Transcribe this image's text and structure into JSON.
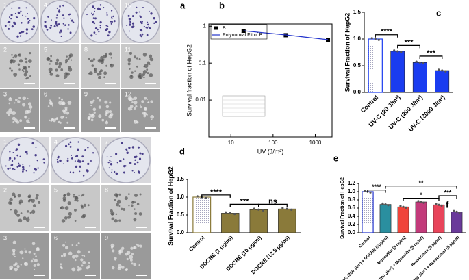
{
  "panels": [
    "a",
    "b",
    "c",
    "d",
    "e",
    "f"
  ],
  "photos": {
    "top": [
      [
        "1",
        "4",
        "7",
        "10"
      ],
      [
        "2",
        "5",
        "8",
        "11"
      ],
      [
        "3",
        "6",
        "9",
        "12"
      ]
    ],
    "bottom": [
      [
        "1",
        "4",
        "7"
      ],
      [
        "2",
        "5",
        "8"
      ],
      [
        "3",
        "6",
        "9"
      ]
    ]
  },
  "chart_data": [
    {
      "type": "scatter",
      "x_label": "UV (J/m²)",
      "y_label": "Survival fraction of HepG2",
      "xlog": true,
      "ylog": true,
      "xlim": [
        3,
        2500
      ],
      "ylim": [
        0.001,
        1.15
      ],
      "xticks": [
        10,
        100,
        1000
      ],
      "yticks": [
        0.01,
        0.1,
        1
      ],
      "series": [
        {
          "name": "B",
          "color": "#000000",
          "x": [
            20,
            200,
            2000
          ],
          "values": [
            0.75,
            0.57,
            0.42
          ]
        },
        {
          "name": "Polynomial Fit of B",
          "color": "#2233cc",
          "x": [
            20,
            200,
            2000
          ],
          "values": [
            0.75,
            0.58,
            0.43
          ]
        }
      ]
    },
    {
      "type": "bar",
      "y_label": "Survival Fraction of HepG2",
      "categories": [
        "Control",
        "UV-C (20 J/m²)",
        "UV-C (200 J/m²)",
        "UV-C (2000 J/m²)"
      ],
      "values": [
        1.0,
        0.77,
        0.56,
        0.41
      ],
      "colors": [
        "#ffffff",
        "#1a3cf0",
        "#1a3cf0",
        "#1a3cf0"
      ],
      "edgecolor": "#1a3cf0",
      "ylim": [
        0,
        1.5
      ],
      "yticks": [
        {
          "value": 0,
          "label": "0.0"
        },
        0.5,
        {
          "value": 1,
          "label": "1.0"
        },
        1.5
      ],
      "annotations": [
        "****",
        "***",
        "***"
      ]
    },
    {
      "type": "bar",
      "y_label": "Survival Fraction of HepG2",
      "categories": [
        "Control",
        "DOCRE (1 μg/ml)",
        "DOCRE (10 μg/ml)",
        "DOCRE (12.5 μg/ml)"
      ],
      "values": [
        1.0,
        0.55,
        0.65,
        0.67
      ],
      "colors": [
        "#ffffff",
        "#8a7a3a",
        "#8a7a3a",
        "#8a7a3a"
      ],
      "edgecolor": "#8a7a3a",
      "ylim": [
        0,
        1.5
      ],
      "yticks": [
        {
          "value": 0,
          "label": "0.0"
        },
        0.5,
        {
          "value": 1,
          "label": "1.0"
        },
        1.5
      ],
      "annotations": [
        "****",
        "***",
        "ns"
      ]
    },
    {
      "type": "bar",
      "y_label": "Survival Fraction of HepG2",
      "categories": [
        "Control",
        "UV-C (200 J/m²) + DOCRE (5μg/ml)",
        "Moscatilin (5 μg/ml)",
        "UV-C (200 J/m²) + Moscatilin (5 μg/ml)",
        "Resveratrol (5 μg/ml)",
        "UV-C (200 J/m²) + Resveratrol (5 μg/ml)"
      ],
      "values": [
        1.0,
        0.69,
        0.63,
        0.75,
        0.68,
        0.51
      ],
      "colors": [
        "#ffffff",
        "#2a8f9f",
        "#f0443a",
        "#c23a7a",
        "#e8445a",
        "#6a3a9a"
      ],
      "edgecolor": "#2233cc",
      "ylim": [
        0,
        1.2
      ],
      "yticks": [
        {
          "value": 0,
          "label": "0.0"
        },
        0.2,
        0.4,
        0.6,
        0.8,
        {
          "value": 1,
          "label": "1.0"
        },
        1.2
      ],
      "annotations": [
        "****",
        "**",
        "*",
        "***"
      ]
    }
  ]
}
